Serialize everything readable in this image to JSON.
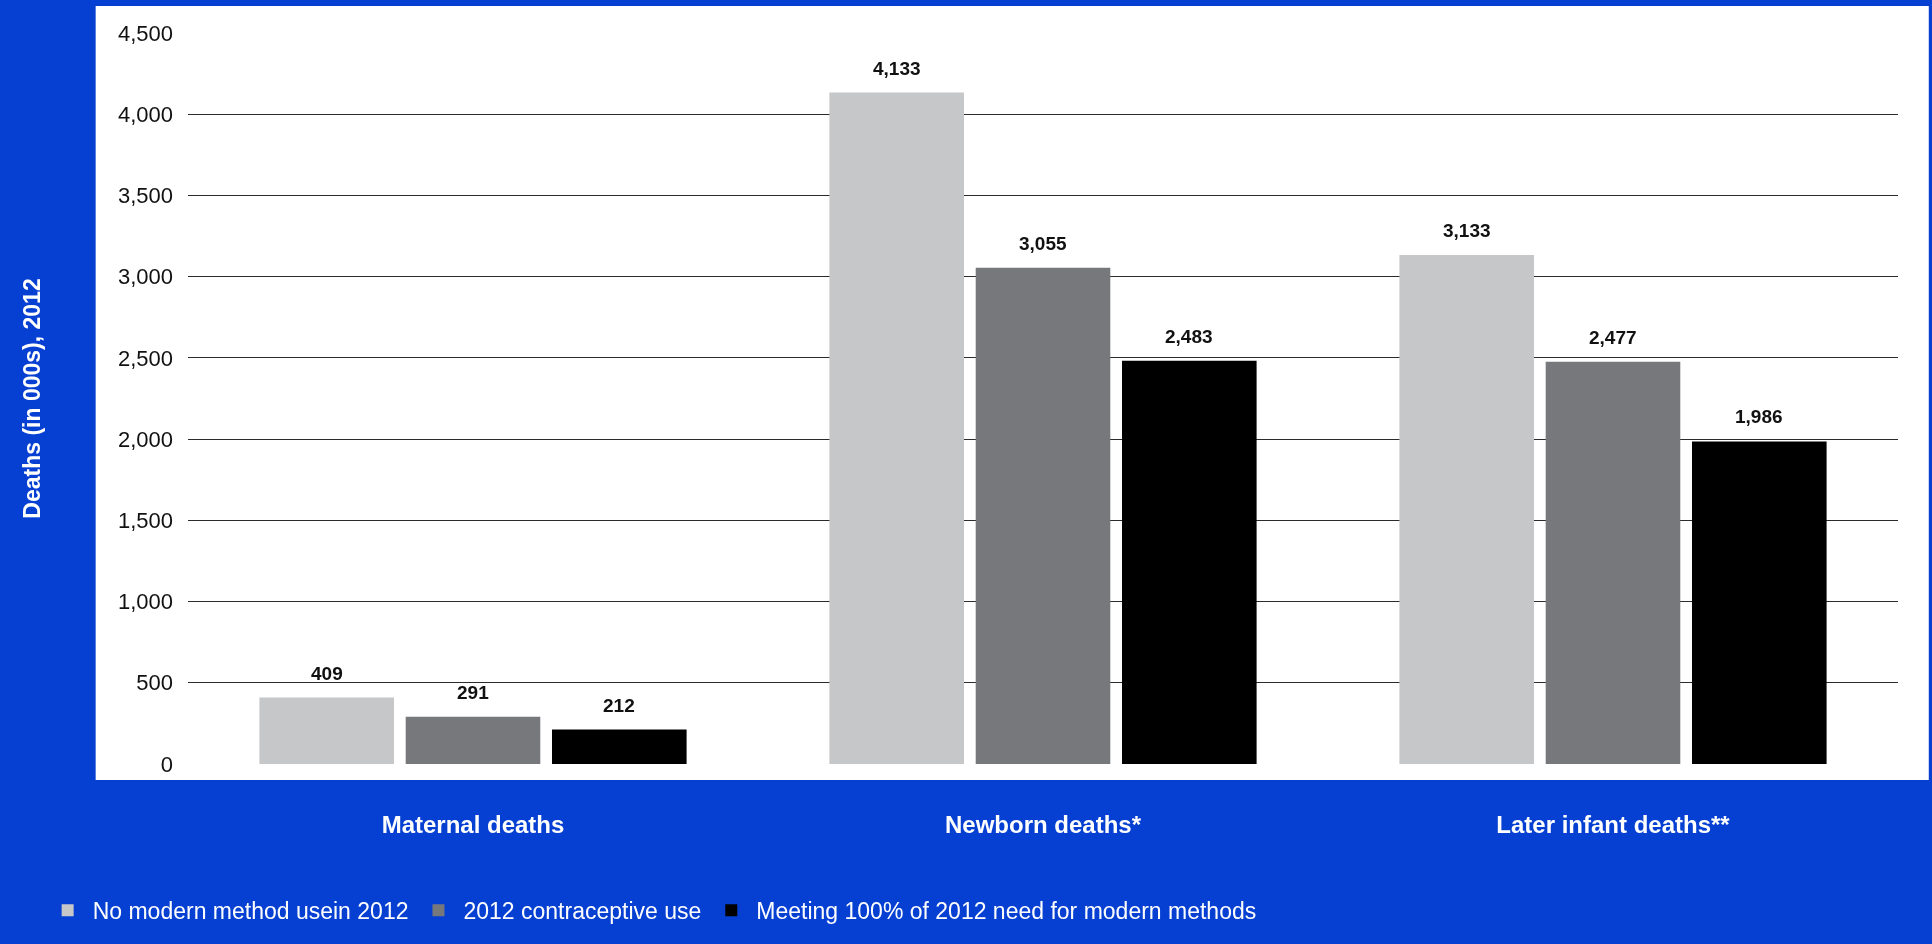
{
  "chart_data": {
    "type": "bar",
    "ylabel": "Deaths (in 000s), 2012",
    "categories": [
      "Maternal deaths",
      "Newborn deaths*",
      "Later infant deaths**"
    ],
    "series": [
      {
        "name": "No modern method usein 2012",
        "color": "#c6c7c9",
        "values": [
          409,
          4133,
          3133
        ],
        "value_labels": [
          "409",
          "4,133",
          "3,133"
        ]
      },
      {
        "name": "2012 contraceptive use",
        "color": "#77787c",
        "values": [
          291,
          3055,
          2477
        ],
        "value_labels": [
          "291",
          "3,055",
          "2,477"
        ]
      },
      {
        "name": "Meeting 100% of 2012 need for modern methods",
        "color": "#000000",
        "values": [
          212,
          2483,
          1986
        ],
        "value_labels": [
          "212",
          "2,483",
          "1,986"
        ]
      }
    ],
    "ylim": [
      0,
      4500
    ],
    "yticks": [
      0,
      500,
      {
        "value": 1000,
        "label": "1,000"
      },
      {
        "value": 1500,
        "label": "1,500"
      },
      {
        "value": 2000,
        "label": "2,000"
      },
      {
        "value": 2500,
        "label": "2,500"
      },
      {
        "value": 3000,
        "label": "3,000"
      },
      {
        "value": 3500,
        "label": "3,500"
      },
      {
        "value": 4000,
        "label": "4,000"
      },
      {
        "value": 4500,
        "label": "4,500"
      }
    ],
    "grid": "y",
    "legend": "bottom"
  }
}
